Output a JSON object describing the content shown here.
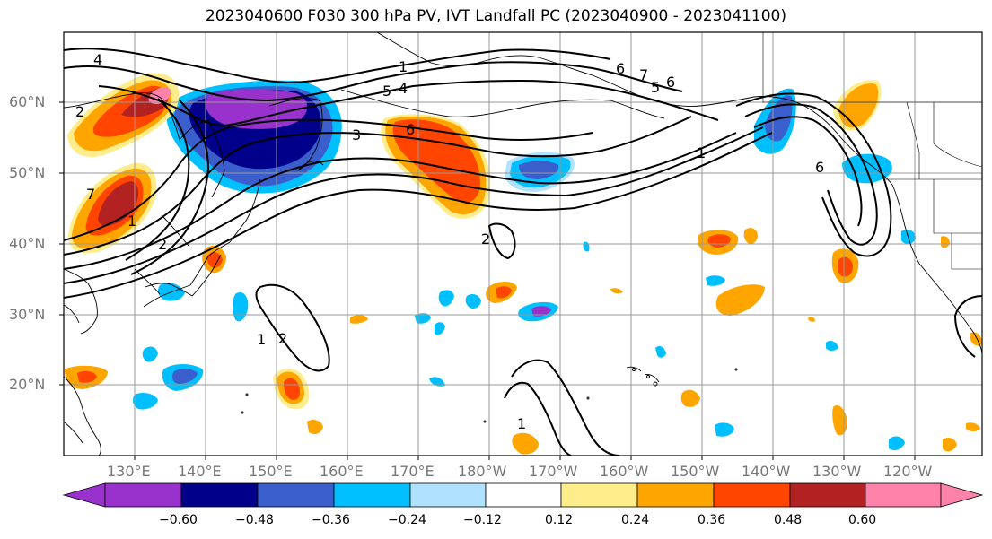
{
  "title": "2023040600 F030 300 hPa PV, IVT Landfall PC (2023040900 - 2023041100)",
  "lat_labels": [
    "60°N",
    "50°N",
    "40°N",
    "30°N",
    "20°N"
  ],
  "lon_labels": [
    "130°E",
    "140°E",
    "150°E",
    "160°E",
    "170°E",
    "180°W",
    "170°W",
    "160°W",
    "150°W",
    "140°W",
    "130°W",
    "120°W"
  ],
  "colorbar": {
    "ticks": [
      "−0.60",
      "−0.48",
      "−0.36",
      "−0.24",
      "−0.12",
      "0.12",
      "0.24",
      "0.36",
      "0.48",
      "0.60"
    ],
    "colors": [
      "#9932CC",
      "#00008B",
      "#3A5FCD",
      "#00BFFF",
      "#B0E2FF",
      "#FFFFFF",
      "#FFEC8B",
      "#FFA500",
      "#FF4500",
      "#B22222",
      "#FF82AB"
    ]
  },
  "contour_labels": [
    "4",
    "2",
    "7",
    "5",
    "6",
    "4",
    "3",
    "1",
    "6",
    "7",
    "5",
    "6",
    "1",
    "6",
    "1",
    "2",
    "2",
    "1",
    "2",
    "1"
  ],
  "colors": {
    "grid": "#999999",
    "axis_text": "#777777",
    "contour": "#000000",
    "coast": "#000000"
  }
}
